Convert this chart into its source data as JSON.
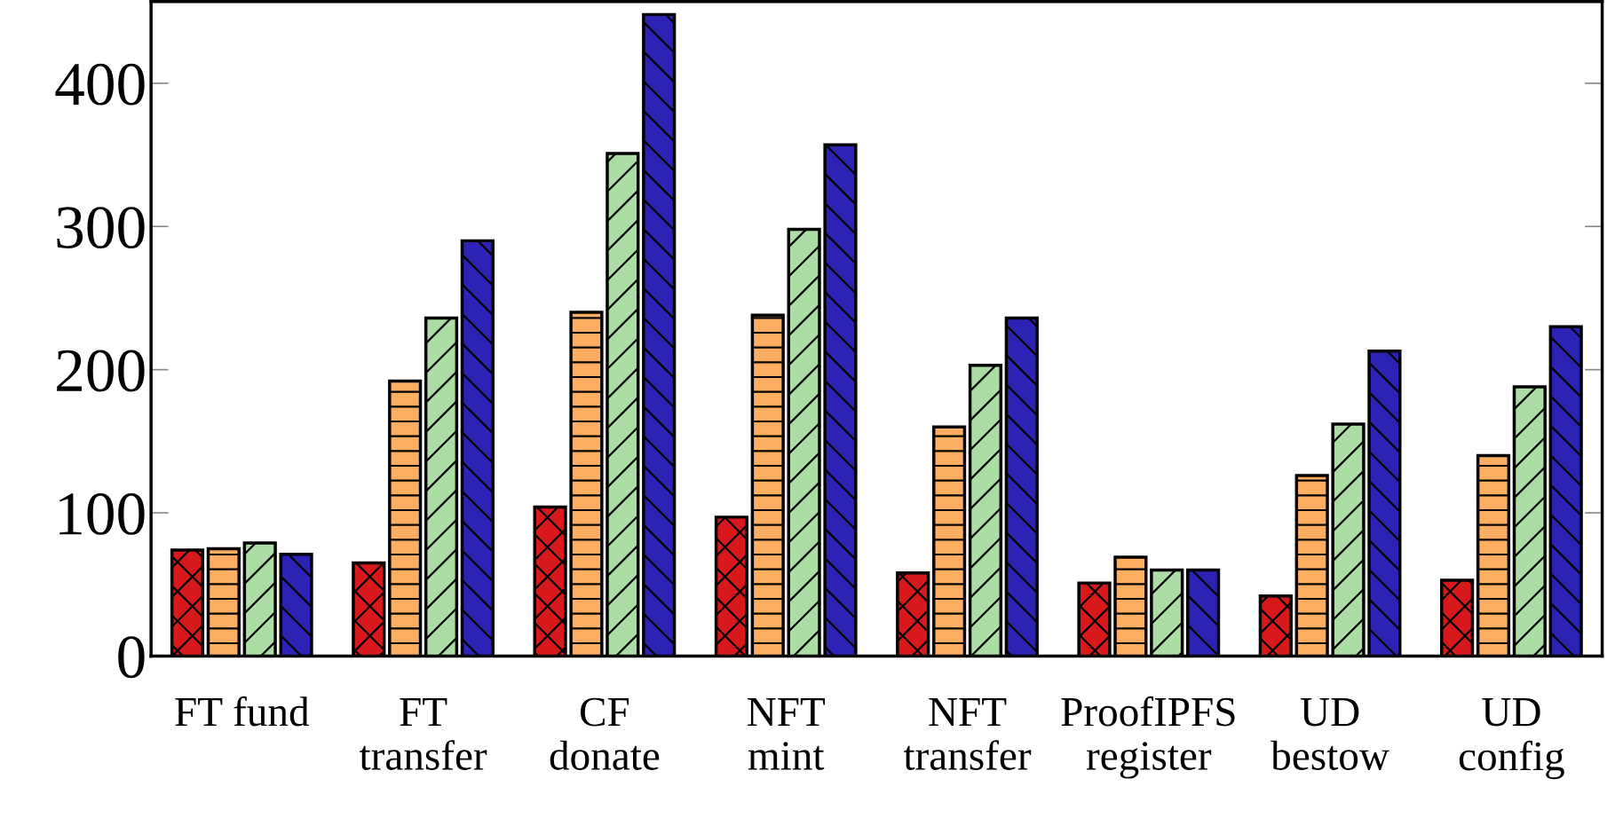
{
  "chart_data": {
    "type": "bar",
    "categories": [
      "FT fund",
      "FT\ntransfer",
      "CF\ndonate",
      "NFT\nmint",
      "NFT\ntransfer",
      "ProofIPFS\nregister",
      "UD\nbestow",
      "UD\nconfig"
    ],
    "series": [
      {
        "color": "#d7191c",
        "values": [
          74,
          65,
          104,
          97,
          58,
          51,
          42,
          53
        ]
      },
      {
        "color": "#fdae61",
        "values": [
          75,
          192,
          240,
          238,
          160,
          69,
          126,
          140
        ]
      },
      {
        "color": "#abdda4",
        "values": [
          79,
          236,
          351,
          298,
          203,
          60,
          162,
          188
        ]
      },
      {
        "color": "#2c22b4",
        "values": [
          71,
          290,
          448,
          357,
          236,
          60,
          213,
          230
        ]
      }
    ],
    "ylim": [
      0,
      457
    ],
    "yticks": [
      0,
      100,
      200,
      300,
      400
    ],
    "grid": false,
    "legend": false
  }
}
